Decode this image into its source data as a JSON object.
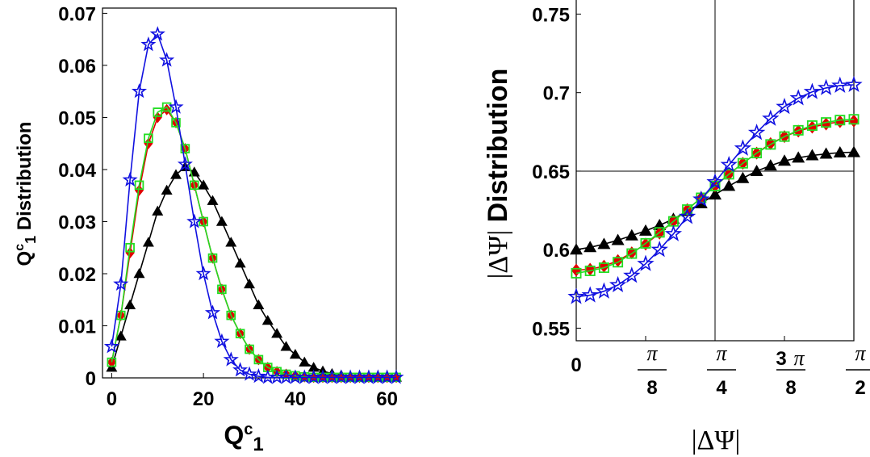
{
  "colors": {
    "black_series": "#000000",
    "red_series": "#e00000",
    "green_series": "#22dd22",
    "blue_series": "#1010e0"
  },
  "chart_data": [
    {
      "type": "line",
      "xlabel_main": "Q",
      "xlabel_sup": "c",
      "xlabel_sub": "1",
      "ylabel_main": "Q",
      "ylabel_sup": "c",
      "ylabel_sub": "1",
      "ylabel_tail": " Distribution",
      "xlim": [
        -2,
        62
      ],
      "ylim": [
        0,
        0.071
      ],
      "x_ticks": [
        0,
        20,
        40,
        60
      ],
      "x_tick_labels": [
        "0",
        "20",
        "40",
        "60"
      ],
      "y_ticks": [
        0,
        0.01,
        0.02,
        0.03,
        0.04,
        0.05,
        0.06,
        0.07
      ],
      "y_tick_labels": [
        "0",
        "0.01",
        "0.02",
        "0.03",
        "0.04",
        "0.05",
        "0.06",
        "0.07"
      ],
      "grid": false,
      "legend": "none",
      "series": [
        {
          "marker": "triangle",
          "color": "black",
          "x": [
            0,
            2,
            4,
            6,
            8,
            10,
            12,
            14,
            16,
            18,
            20,
            22,
            24,
            26,
            28,
            30,
            32,
            34,
            36,
            38,
            40,
            42,
            44,
            46,
            48,
            50,
            52,
            54,
            56,
            58,
            60,
            62
          ],
          "y": [
            0.002,
            0.008,
            0.014,
            0.02,
            0.026,
            0.032,
            0.036,
            0.039,
            0.0405,
            0.0395,
            0.037,
            0.034,
            0.03,
            0.026,
            0.022,
            0.018,
            0.014,
            0.011,
            0.0085,
            0.006,
            0.0045,
            0.003,
            0.002,
            0.0013,
            0.0008,
            0.0005,
            0.0003,
            0.0002,
            0.0001,
            0.0001,
            0.0001,
            0.0001
          ]
        },
        {
          "marker": "diamond",
          "color": "red",
          "x": [
            0,
            2,
            4,
            6,
            8,
            10,
            12,
            14,
            16,
            18,
            20,
            22,
            24,
            26,
            28,
            30,
            32,
            34,
            36,
            38,
            40,
            42,
            44,
            46,
            48,
            50,
            52,
            54,
            56,
            58,
            60,
            62
          ],
          "y": [
            0.003,
            0.012,
            0.024,
            0.036,
            0.045,
            0.05,
            0.0515,
            0.049,
            0.044,
            0.037,
            0.03,
            0.023,
            0.017,
            0.012,
            0.0085,
            0.0055,
            0.0035,
            0.002,
            0.0012,
            0.0007,
            0.0004,
            0.0002,
            0.0001,
            0.0001,
            0.0001,
            0.0001,
            0.0001,
            0.0001,
            0.0001,
            0.0001,
            0.0001,
            0.0001
          ]
        },
        {
          "marker": "open-square",
          "color": "green",
          "x": [
            0,
            2,
            4,
            6,
            8,
            10,
            12,
            14,
            16,
            18,
            20,
            22,
            24,
            26,
            28,
            30,
            32,
            34,
            36,
            38,
            40,
            42,
            44,
            46,
            48,
            50,
            52,
            54,
            56,
            58,
            60,
            62
          ],
          "y": [
            0.003,
            0.012,
            0.025,
            0.037,
            0.046,
            0.051,
            0.052,
            0.049,
            0.044,
            0.037,
            0.03,
            0.023,
            0.017,
            0.012,
            0.0085,
            0.0055,
            0.0035,
            0.002,
            0.0012,
            0.0007,
            0.0004,
            0.0002,
            0.0001,
            0.0001,
            0.0001,
            0.0001,
            0.0001,
            0.0001,
            0.0001,
            0.0001,
            0.0001,
            0.0001
          ]
        },
        {
          "marker": "open-star",
          "color": "blue",
          "x": [
            0,
            2,
            4,
            6,
            8,
            10,
            12,
            14,
            16,
            18,
            20,
            22,
            24,
            26,
            28,
            30,
            32,
            34,
            36,
            38,
            40,
            42,
            44,
            46,
            48,
            50,
            52,
            54,
            56,
            58,
            60,
            62
          ],
          "y": [
            0.006,
            0.018,
            0.038,
            0.055,
            0.064,
            0.066,
            0.061,
            0.052,
            0.041,
            0.03,
            0.02,
            0.0125,
            0.007,
            0.0035,
            0.0015,
            0.0007,
            0.0003,
            0.0001,
            0.0001,
            0.0001,
            0.0001,
            0.0001,
            0.0001,
            0.0001,
            0.0001,
            0.0001,
            0.0001,
            0.0001,
            0.0001,
            0.0001,
            0.0001,
            0.0001
          ]
        }
      ]
    },
    {
      "type": "line",
      "xlabel": "|ΔΨ|",
      "ylabel_abs": "|ΔΨ|",
      "ylabel_tail": " Distribution",
      "xlim": [
        0,
        1.5708
      ],
      "ylim": [
        0.542,
        0.76
      ],
      "x_ticks": [
        0,
        0.3927,
        0.7854,
        1.1781,
        1.5708
      ],
      "x_tick_labels": [
        {
          "plain": "0"
        },
        {
          "num": "π",
          "den": "8"
        },
        {
          "num": "π",
          "den": "4"
        },
        {
          "coef": "3",
          "num": "π",
          "den": "8"
        },
        {
          "num": "π",
          "den": "2"
        }
      ],
      "y_ticks": [
        0.55,
        0.6,
        0.65,
        0.7,
        0.75
      ],
      "y_tick_labels": [
        "0.55",
        "0.6",
        "0.65",
        "0.7",
        "0.75"
      ],
      "reference_lines": {
        "x": 0.7854,
        "y": 0.65
      },
      "grid": false,
      "legend": "none",
      "series": [
        {
          "marker": "triangle",
          "color": "black",
          "x": [
            0,
            0.0785,
            0.1571,
            0.2356,
            0.3142,
            0.3927,
            0.4712,
            0.5498,
            0.6283,
            0.7069,
            0.7854,
            0.8639,
            0.9425,
            1.021,
            1.0996,
            1.1781,
            1.2566,
            1.3352,
            1.4137,
            1.4923,
            1.5708
          ],
          "y": [
            0.6,
            0.6015,
            0.6035,
            0.606,
            0.609,
            0.612,
            0.6155,
            0.6195,
            0.6245,
            0.6295,
            0.635,
            0.6405,
            0.6455,
            0.65,
            0.6535,
            0.6565,
            0.6585,
            0.66,
            0.661,
            0.6618,
            0.662
          ]
        },
        {
          "marker": "diamond",
          "color": "red",
          "x": [
            0,
            0.0785,
            0.1571,
            0.2356,
            0.3142,
            0.3927,
            0.4712,
            0.5498,
            0.6283,
            0.7069,
            0.7854,
            0.8639,
            0.9425,
            1.021,
            1.0996,
            1.1781,
            1.2566,
            1.3352,
            1.4137,
            1.4923,
            1.5708
          ],
          "y": [
            0.587,
            0.5875,
            0.5895,
            0.593,
            0.598,
            0.6035,
            0.6105,
            0.618,
            0.6255,
            0.633,
            0.6405,
            0.648,
            0.655,
            0.6615,
            0.6675,
            0.672,
            0.6755,
            0.678,
            0.68,
            0.6815,
            0.682
          ]
        },
        {
          "marker": "open-square",
          "color": "green",
          "x": [
            0,
            0.0785,
            0.1571,
            0.2356,
            0.3142,
            0.3927,
            0.4712,
            0.5498,
            0.6283,
            0.7069,
            0.7854,
            0.8639,
            0.9425,
            1.021,
            1.0996,
            1.1781,
            1.2566,
            1.3352,
            1.4137,
            1.4923,
            1.5708
          ],
          "y": [
            0.585,
            0.5865,
            0.5885,
            0.592,
            0.5975,
            0.604,
            0.611,
            0.618,
            0.6255,
            0.633,
            0.6405,
            0.648,
            0.655,
            0.6615,
            0.667,
            0.672,
            0.676,
            0.679,
            0.681,
            0.6825,
            0.683
          ]
        },
        {
          "marker": "open-star",
          "color": "blue",
          "x": [
            0,
            0.0785,
            0.1571,
            0.2356,
            0.3142,
            0.3927,
            0.4712,
            0.5498,
            0.6283,
            0.7069,
            0.7854,
            0.8639,
            0.9425,
            1.021,
            1.0996,
            1.1781,
            1.2566,
            1.3352,
            1.4137,
            1.4923,
            1.5708
          ],
          "y": [
            0.57,
            0.571,
            0.5735,
            0.5775,
            0.5835,
            0.591,
            0.6,
            0.61,
            0.621,
            0.632,
            0.643,
            0.654,
            0.6645,
            0.6745,
            0.6835,
            0.691,
            0.6965,
            0.7005,
            0.703,
            0.7045,
            0.705
          ]
        }
      ]
    }
  ]
}
